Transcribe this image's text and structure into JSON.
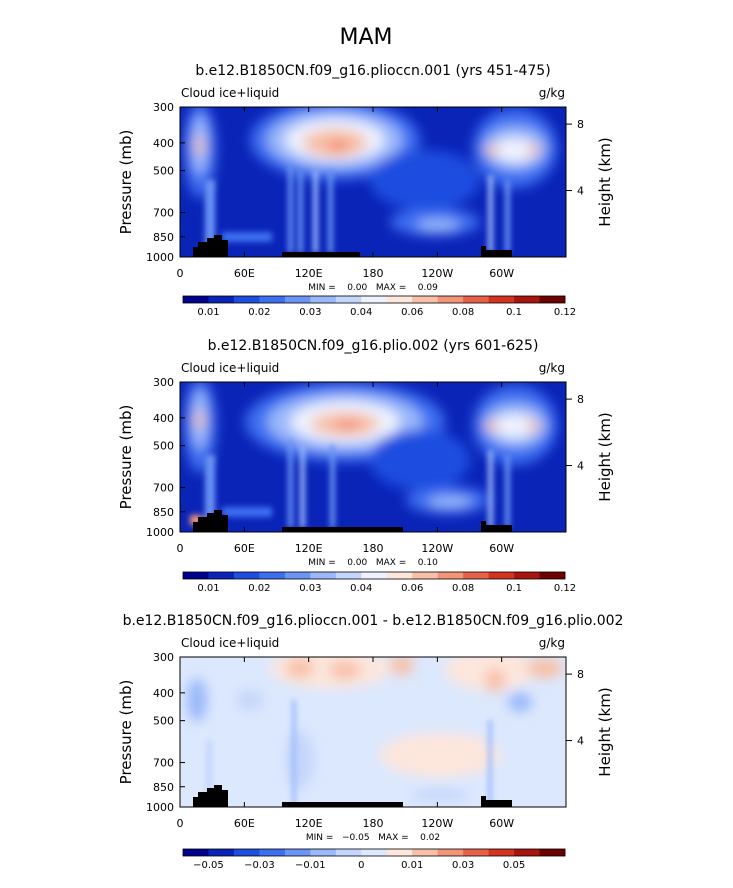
{
  "season_title": "MAM",
  "chart_data": [
    {
      "type": "heatmap",
      "title": "b.e12.B1850CN.f09_g16.plioccn.001 (yrs 451-475)",
      "left_label": "Cloud ice+liquid",
      "right_label": "g/kg",
      "ylabel": "Pressure (mb)",
      "y2label": "Height (km)",
      "x_ticks": [
        "0",
        "60E",
        "120E",
        "180",
        "120W",
        "60W"
      ],
      "y_ticks": [
        "300",
        "400",
        "500",
        "700",
        "850",
        "1000"
      ],
      "y2_ticks": [
        "8",
        "4"
      ],
      "xlim": [
        0,
        360
      ],
      "ylim": [
        1000,
        300
      ],
      "min_max": "MIN =    0.00   MAX =    0.09",
      "colorbar_labels": [
        "0.01",
        "0.02",
        "0.03",
        "0.04",
        "0.06",
        "0.08",
        "0.1",
        "0.12"
      ],
      "colorbar_colors": [
        "#00008f",
        "#0a24b8",
        "#1e4ee0",
        "#3c6ef0",
        "#6a94f5",
        "#9ab8fa",
        "#c4d6fc",
        "#eef2fe",
        "#fde6dc",
        "#f8c0a8",
        "#f29478",
        "#e8604a",
        "#d43320",
        "#a8140e",
        "#6e0000"
      ]
    },
    {
      "type": "heatmap",
      "title": "b.e12.B1850CN.f09_g16.plio.002 (yrs 601-625)",
      "left_label": "Cloud ice+liquid",
      "right_label": "g/kg",
      "ylabel": "Pressure (mb)",
      "y2label": "Height (km)",
      "x_ticks": [
        "0",
        "60E",
        "120E",
        "180",
        "120W",
        "60W"
      ],
      "y_ticks": [
        "300",
        "400",
        "500",
        "700",
        "850",
        "1000"
      ],
      "y2_ticks": [
        "8",
        "4"
      ],
      "xlim": [
        0,
        360
      ],
      "ylim": [
        1000,
        300
      ],
      "min_max": "MIN =    0.00   MAX =    0.10",
      "colorbar_labels": [
        "0.01",
        "0.02",
        "0.03",
        "0.04",
        "0.06",
        "0.08",
        "0.1",
        "0.12"
      ],
      "colorbar_colors": [
        "#00008f",
        "#0a24b8",
        "#1e4ee0",
        "#3c6ef0",
        "#6a94f5",
        "#9ab8fa",
        "#c4d6fc",
        "#eef2fe",
        "#fde6dc",
        "#f8c0a8",
        "#f29478",
        "#e8604a",
        "#d43320",
        "#a8140e",
        "#6e0000"
      ]
    },
    {
      "type": "heatmap",
      "title": "b.e12.B1850CN.f09_g16.plioccn.001 - b.e12.B1850CN.f09_g16.plio.002",
      "left_label": "Cloud ice+liquid",
      "right_label": "g/kg",
      "ylabel": "Pressure (mb)",
      "y2label": "Height (km)",
      "x_ticks": [
        "0",
        "60E",
        "120E",
        "180",
        "120W",
        "60W"
      ],
      "y_ticks": [
        "300",
        "400",
        "500",
        "700",
        "850",
        "1000"
      ],
      "y2_ticks": [
        "8",
        "4"
      ],
      "xlim": [
        0,
        360
      ],
      "ylim": [
        1000,
        300
      ],
      "min_max": "MIN =   −0.05   MAX =    0.02",
      "colorbar_labels": [
        "−0.05",
        "−0.03",
        "−0.01",
        "0",
        "0.01",
        "0.03",
        "0.05"
      ],
      "colorbar_colors": [
        "#00008f",
        "#0a24b8",
        "#1e4ee0",
        "#3c6ef0",
        "#6a94f5",
        "#9ab8fa",
        "#c4d6fc",
        "#dce8fd",
        "#fde6dc",
        "#f8c0a8",
        "#f29478",
        "#e8604a",
        "#d43320",
        "#a8140e",
        "#6e0000"
      ]
    }
  ]
}
